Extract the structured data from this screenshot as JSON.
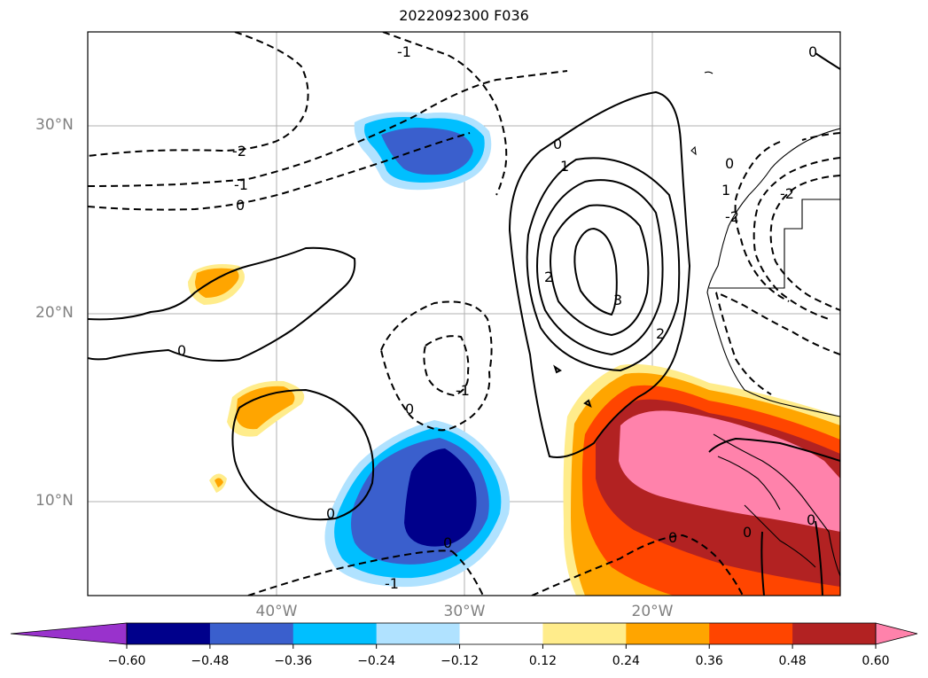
{
  "title": "2022092300 F036",
  "axes": {
    "lat_labels": [
      "30°N",
      "20°N",
      "10°N"
    ],
    "lon_labels": [
      "40°W",
      "30°W",
      "20°W"
    ]
  },
  "colorbar": {
    "tick_labels": [
      "−0.60",
      "−0.48",
      "−0.36",
      "−0.24",
      "−0.12",
      "0.12",
      "0.24",
      "0.36",
      "0.48",
      "0.60"
    ],
    "colors": [
      "#9932cc",
      "#00008b",
      "#3a5fcd",
      "#00bfff",
      "#b0e2ff",
      "#ffffff",
      "#ffec8b",
      "#ffa500",
      "#ff4500",
      "#b22222",
      "#ff82ab"
    ],
    "extend": "both"
  },
  "contour_labels": {
    "neg2": "-2",
    "neg1": "-1",
    "zero": "0",
    "pos2": "2",
    "pos3": "3"
  }
}
